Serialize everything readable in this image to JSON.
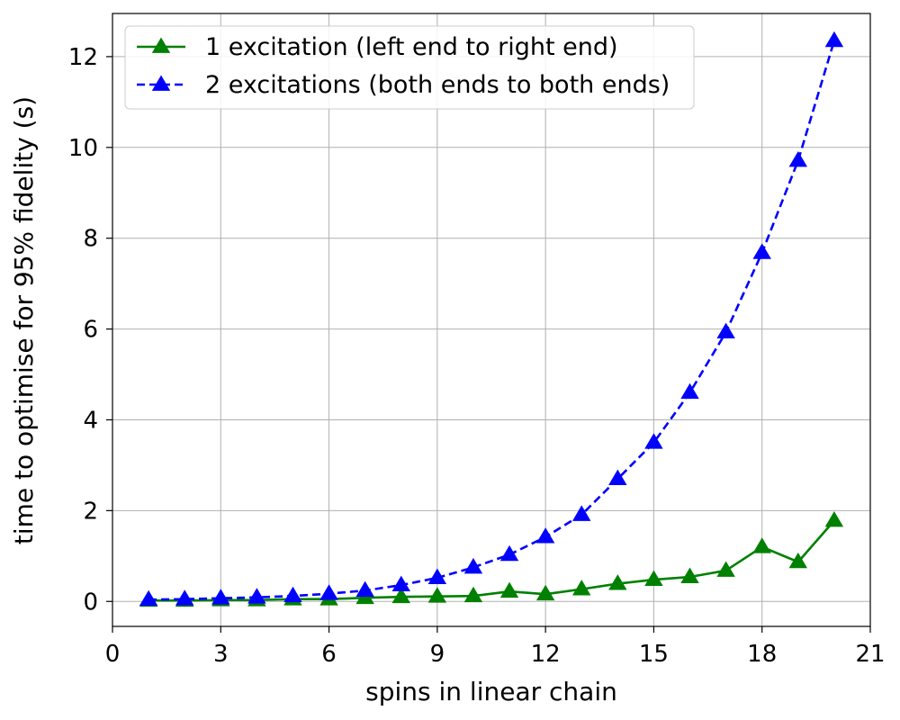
{
  "chart_data": {
    "type": "line",
    "title": "",
    "xlabel": "spins in linear chain",
    "ylabel": "time to optimise for 95% fidelity (s)",
    "xlim": [
      0,
      21
    ],
    "ylim": [
      -0.55,
      12.95
    ],
    "xticks": [
      0,
      3,
      6,
      9,
      12,
      15,
      18,
      21
    ],
    "yticks": [
      0,
      2,
      4,
      6,
      8,
      10,
      12
    ],
    "grid": true,
    "legend": "top-left",
    "x": [
      1,
      2,
      3,
      4,
      5,
      6,
      7,
      8,
      9,
      10,
      11,
      12,
      13,
      14,
      15,
      16,
      17,
      18,
      19,
      20
    ],
    "series": [
      {
        "name": "1 excitation (left end to right end)",
        "color": "#008000",
        "linestyle": "solid",
        "marker": "triangle",
        "values": [
          0.02,
          0.02,
          0.03,
          0.03,
          0.05,
          0.05,
          0.08,
          0.1,
          0.11,
          0.12,
          0.22,
          0.16,
          0.27,
          0.39,
          0.48,
          0.54,
          0.68,
          1.2,
          0.87,
          1.78
        ]
      },
      {
        "name": "2 excitations (both ends to both ends)",
        "color": "#0000ff",
        "linestyle": "dashed",
        "marker": "triangle",
        "values": [
          0.04,
          0.05,
          0.07,
          0.09,
          0.12,
          0.17,
          0.24,
          0.36,
          0.52,
          0.75,
          1.03,
          1.42,
          1.91,
          2.7,
          3.5,
          4.6,
          5.93,
          7.68,
          9.71,
          12.35
        ]
      }
    ]
  }
}
